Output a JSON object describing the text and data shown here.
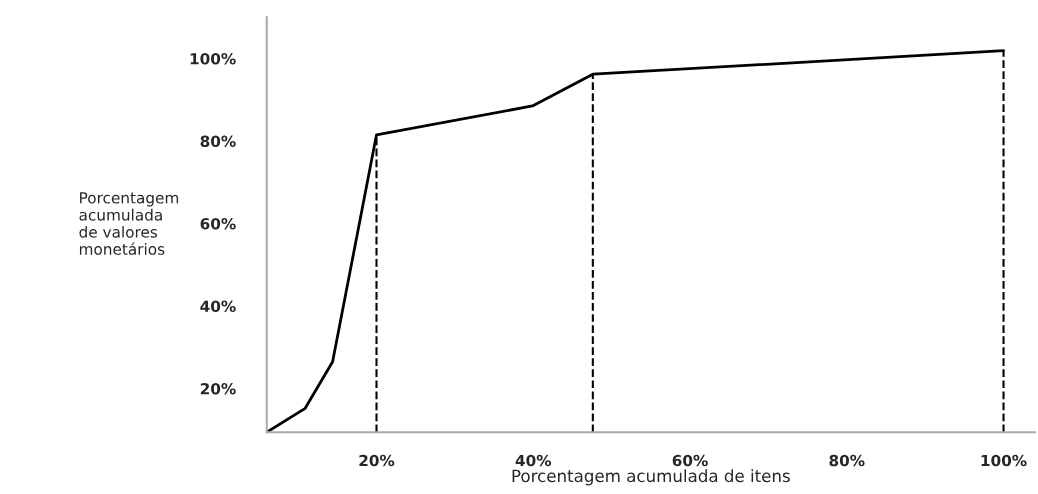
{
  "chart_data": {
    "type": "line",
    "xlabel": "Porcentagem acumulada de itens",
    "ylabel": "Porcentagem\nacumulada\nde valores\nmonetários",
    "x": [
      6.0,
      10.9,
      14.4,
      20,
      39.9,
      47.6,
      100
    ],
    "series": [
      {
        "color": "#000000",
        "values": [
          9.4,
          15.2,
          26.5,
          81.5,
          88.5,
          96.2,
          101.9
        ]
      }
    ],
    "xlim": [
      6,
      104
    ],
    "ylim": [
      9.4,
      110
    ],
    "xticks": [
      {
        "value": 20,
        "label": "20%"
      },
      {
        "value": 40,
        "label": "40%"
      },
      {
        "value": 60,
        "label": "60%"
      },
      {
        "value": 80,
        "label": "80%"
      },
      {
        "value": 100,
        "label": "100%"
      }
    ],
    "yticks": [
      {
        "value": 20,
        "label": "20%"
      },
      {
        "value": 40,
        "label": "40%"
      },
      {
        "value": 60,
        "label": "60%"
      },
      {
        "value": 80,
        "label": "80%"
      },
      {
        "value": 100,
        "label": "100%"
      }
    ],
    "ref_lines": [
      {
        "axis": "x",
        "value": 20,
        "color": "#000000",
        "line_style": "dashed"
      },
      {
        "axis": "x",
        "value": 47.6,
        "color": "#000000",
        "line_style": "dashed"
      },
      {
        "axis": "x",
        "value": 100,
        "color": "#000000",
        "line_style": "dashed"
      }
    ],
    "grid": false,
    "legend": false,
    "marker": "none",
    "line_style": "solid"
  }
}
